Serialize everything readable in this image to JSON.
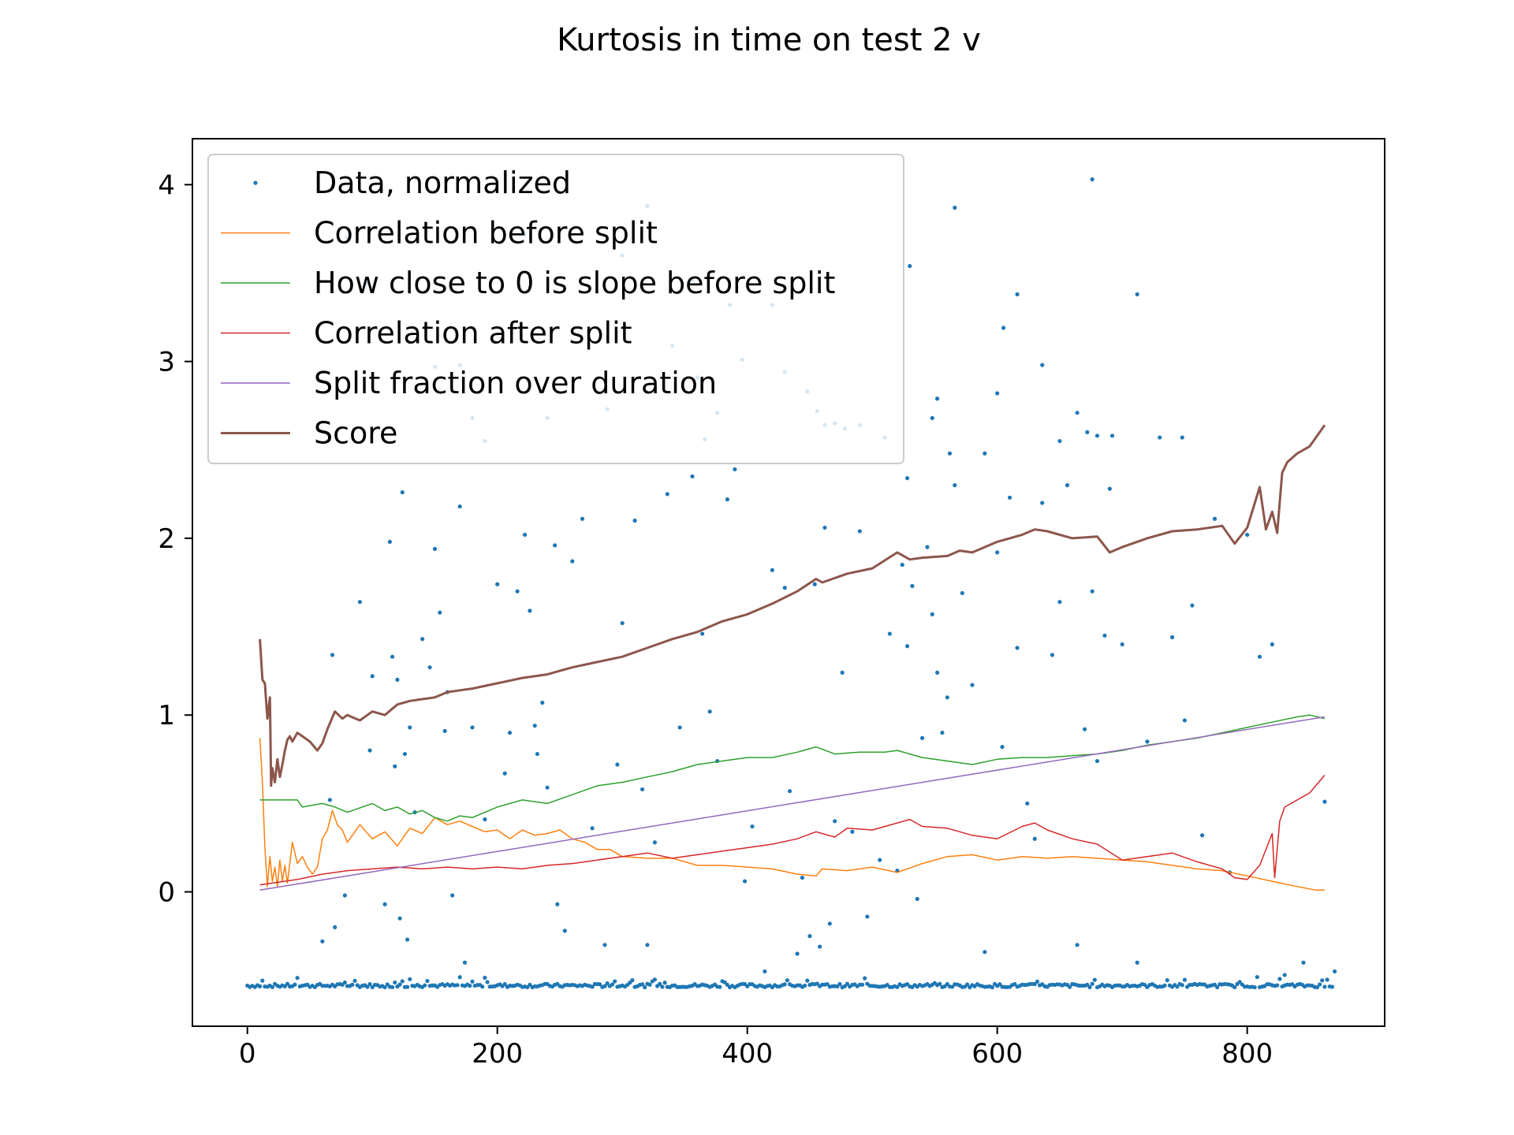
{
  "chart_data": {
    "type": "line",
    "title": "Kurtosis in time on test 2 v",
    "xlabel": "",
    "ylabel": "",
    "xlim": [
      -44,
      910
    ],
    "ylim": [
      -0.76,
      4.26
    ],
    "xticks": [
      0,
      200,
      400,
      600,
      800
    ],
    "yticks": [
      0,
      1,
      2,
      3,
      4
    ],
    "legend_position": "top-left",
    "grid": false,
    "series": [
      {
        "name": "Data, normalized",
        "kind": "scatter",
        "color": "#1f77b4",
        "baseline": -0.53,
        "x": [
          60,
          66,
          68,
          70,
          78,
          90,
          98,
          100,
          110,
          114,
          116,
          118,
          120,
          122,
          124,
          126,
          128,
          130,
          134,
          140,
          146,
          150,
          154,
          158,
          160,
          164,
          170,
          174,
          180,
          190,
          200,
          206,
          210,
          216,
          222,
          226,
          230,
          232,
          236,
          240,
          246,
          248,
          254,
          260,
          268,
          276,
          286,
          296,
          300,
          310,
          316,
          320,
          326,
          336,
          346,
          356,
          364,
          370,
          376,
          384,
          390,
          398,
          404,
          414,
          420,
          430,
          434,
          440,
          444,
          450,
          454,
          458,
          462,
          466,
          470,
          476,
          484,
          490,
          496,
          506,
          514,
          520,
          524,
          528,
          532,
          536,
          540,
          544,
          548,
          552,
          556,
          560,
          566,
          572,
          580,
          590,
          600,
          604,
          610,
          616,
          624,
          630,
          636,
          644,
          650,
          656,
          664,
          670,
          676,
          680,
          686,
          692,
          700,
          712,
          720,
          730,
          740,
          750,
          756,
          764,
          774,
          786,
          800,
          810,
          820,
          830,
          845,
          862,
          870
        ],
        "y": [
          -0.28,
          0.52,
          1.34,
          -0.2,
          -0.02,
          1.64,
          0.8,
          1.22,
          -0.07,
          1.98,
          1.33,
          0.71,
          1.2,
          -0.15,
          2.26,
          0.78,
          -0.27,
          0.93,
          0.45,
          1.43,
          1.27,
          1.94,
          1.58,
          0.91,
          1.13,
          -0.02,
          2.18,
          -0.4,
          0.93,
          0.41,
          1.74,
          0.67,
          0.9,
          1.7,
          2.02,
          1.59,
          0.94,
          0.78,
          1.07,
          0.59,
          1.96,
          -0.07,
          -0.22,
          1.87,
          2.11,
          0.36,
          -0.3,
          0.72,
          1.52,
          2.1,
          0.58,
          -0.3,
          0.28,
          2.25,
          0.93,
          2.35,
          1.46,
          1.02,
          0.74,
          2.22,
          2.39,
          0.06,
          0.37,
          -0.45,
          1.82,
          1.72,
          0.57,
          -0.35,
          0.08,
          -0.25,
          1.74,
          -0.31,
          2.06,
          -0.18,
          0.4,
          1.24,
          0.34,
          2.04,
          -0.14,
          0.18,
          1.46,
          0.12,
          1.85,
          1.39,
          1.73,
          -0.04,
          0.87,
          1.95,
          1.57,
          1.24,
          0.9,
          1.1,
          2.3,
          1.69,
          1.17,
          -0.34,
          1.92,
          0.82,
          2.23,
          1.38,
          0.5,
          0.3,
          2.2,
          1.34,
          1.64,
          2.3,
          -0.3,
          0.92,
          1.7,
          0.74,
          1.45,
          2.58,
          1.4,
          -0.4,
          0.85,
          2.57,
          1.44,
          0.97,
          1.62,
          0.32,
          2.11,
          0.11,
          2.02,
          1.33,
          1.4,
          -0.47,
          -0.4,
          0.51,
          -0.45
        ],
        "x_upper": [
          80,
          96,
          150,
          170,
          180,
          190,
          222,
          240,
          262,
          288,
          300,
          320,
          340,
          356,
          360,
          366,
          376,
          386,
          396,
          420,
          430,
          448,
          456,
          462,
          470,
          478,
          490,
          510,
          528,
          530,
          548,
          552,
          562,
          566,
          590,
          600,
          605,
          616,
          636,
          650,
          664,
          672,
          676,
          680,
          690,
          712,
          748
        ],
        "y_upper": [
          3.7,
          3.44,
          2.97,
          2.98,
          2.68,
          2.55,
          3.72,
          2.68,
          3.76,
          2.73,
          3.6,
          3.88,
          3.09,
          3.46,
          2.91,
          2.56,
          2.71,
          3.32,
          3.01,
          3.32,
          2.94,
          2.83,
          2.72,
          2.64,
          2.65,
          2.62,
          2.64,
          2.57,
          2.34,
          3.54,
          2.68,
          2.79,
          2.48,
          3.87,
          2.48,
          2.82,
          3.19,
          3.38,
          2.98,
          2.55,
          2.71,
          2.6,
          4.03,
          2.58,
          2.28,
          3.38,
          2.57
        ]
      },
      {
        "name": "Correlation before split",
        "kind": "line",
        "color": "#ff7f0e",
        "x": [
          10,
          12,
          14,
          16,
          18,
          20,
          22,
          24,
          26,
          28,
          30,
          32,
          36,
          40,
          44,
          48,
          52,
          56,
          60,
          64,
          68,
          72,
          76,
          80,
          90,
          100,
          110,
          120,
          130,
          140,
          150,
          160,
          170,
          180,
          190,
          200,
          210,
          220,
          230,
          240,
          250,
          260,
          270,
          280,
          290,
          300,
          320,
          340,
          360,
          380,
          400,
          420,
          440,
          455,
          460,
          480,
          500,
          520,
          540,
          560,
          580,
          600,
          620,
          640,
          660,
          680,
          700,
          720,
          740,
          760,
          780,
          800,
          820,
          840,
          855,
          862
        ],
        "y": [
          0.87,
          0.62,
          0.25,
          0.03,
          0.2,
          0.06,
          0.14,
          0.03,
          0.18,
          0.06,
          0.15,
          0.05,
          0.28,
          0.16,
          0.2,
          0.14,
          0.1,
          0.14,
          0.3,
          0.35,
          0.46,
          0.38,
          0.35,
          0.28,
          0.38,
          0.3,
          0.34,
          0.26,
          0.36,
          0.33,
          0.42,
          0.38,
          0.4,
          0.37,
          0.34,
          0.35,
          0.3,
          0.35,
          0.32,
          0.33,
          0.35,
          0.3,
          0.28,
          0.24,
          0.24,
          0.2,
          0.19,
          0.19,
          0.15,
          0.15,
          0.14,
          0.13,
          0.1,
          0.09,
          0.13,
          0.12,
          0.14,
          0.11,
          0.16,
          0.2,
          0.21,
          0.18,
          0.2,
          0.19,
          0.2,
          0.19,
          0.18,
          0.17,
          0.15,
          0.13,
          0.12,
          0.09,
          0.06,
          0.03,
          0.01,
          0.01
        ]
      },
      {
        "name": "How close to 0 is slope before split",
        "kind": "line",
        "color": "#2ca02c",
        "x": [
          10,
          40,
          44,
          60,
          70,
          80,
          100,
          110,
          120,
          130,
          140,
          150,
          160,
          170,
          180,
          200,
          220,
          240,
          260,
          280,
          300,
          320,
          340,
          360,
          380,
          400,
          420,
          440,
          455,
          470,
          490,
          510,
          520,
          540,
          560,
          580,
          600,
          620,
          640,
          660,
          680,
          700,
          720,
          740,
          760,
          780,
          800,
          820,
          840,
          850,
          862
        ],
        "y": [
          0.52,
          0.52,
          0.48,
          0.5,
          0.48,
          0.45,
          0.5,
          0.46,
          0.48,
          0.44,
          0.46,
          0.42,
          0.4,
          0.43,
          0.42,
          0.48,
          0.52,
          0.5,
          0.55,
          0.6,
          0.62,
          0.65,
          0.68,
          0.72,
          0.74,
          0.76,
          0.76,
          0.79,
          0.82,
          0.78,
          0.79,
          0.79,
          0.8,
          0.76,
          0.74,
          0.72,
          0.75,
          0.76,
          0.76,
          0.77,
          0.78,
          0.8,
          0.83,
          0.85,
          0.87,
          0.9,
          0.93,
          0.96,
          0.99,
          1.0,
          0.98
        ]
      },
      {
        "name": "Correlation after split",
        "kind": "line",
        "color": "#d62728",
        "x": [
          10,
          40,
          60,
          80,
          100,
          120,
          140,
          160,
          180,
          200,
          220,
          240,
          260,
          280,
          300,
          320,
          340,
          360,
          380,
          400,
          420,
          440,
          455,
          470,
          480,
          500,
          520,
          530,
          540,
          560,
          580,
          600,
          620,
          630,
          640,
          660,
          680,
          700,
          720,
          740,
          760,
          780,
          790,
          800,
          810,
          820,
          822,
          826,
          830,
          840,
          850,
          862
        ],
        "y": [
          0.04,
          0.07,
          0.1,
          0.12,
          0.13,
          0.14,
          0.13,
          0.14,
          0.13,
          0.14,
          0.13,
          0.15,
          0.16,
          0.18,
          0.2,
          0.22,
          0.19,
          0.21,
          0.23,
          0.25,
          0.27,
          0.3,
          0.34,
          0.31,
          0.36,
          0.35,
          0.39,
          0.41,
          0.37,
          0.36,
          0.32,
          0.3,
          0.37,
          0.39,
          0.35,
          0.3,
          0.27,
          0.18,
          0.2,
          0.22,
          0.17,
          0.13,
          0.08,
          0.07,
          0.15,
          0.33,
          0.08,
          0.4,
          0.48,
          0.52,
          0.56,
          0.66
        ]
      },
      {
        "name": "Split fraction over duration",
        "kind": "line",
        "color": "#9467bd",
        "x": [
          10,
          862
        ],
        "y": [
          0.01,
          0.99
        ]
      },
      {
        "name": "Score",
        "kind": "line",
        "color": "#8c564b",
        "x": [
          10,
          12,
          14,
          16,
          18,
          19,
          20,
          22,
          24,
          26,
          28,
          30,
          32,
          34,
          36,
          40,
          44,
          50,
          56,
          60,
          64,
          70,
          76,
          80,
          90,
          100,
          110,
          120,
          130,
          140,
          150,
          160,
          170,
          180,
          200,
          220,
          240,
          260,
          280,
          300,
          320,
          340,
          360,
          380,
          400,
          420,
          440,
          455,
          460,
          480,
          500,
          520,
          530,
          540,
          560,
          570,
          580,
          600,
          620,
          630,
          640,
          660,
          680,
          690,
          700,
          720,
          740,
          760,
          780,
          790,
          800,
          810,
          815,
          820,
          824,
          828,
          832,
          840,
          850,
          862
        ],
        "y": [
          1.43,
          1.2,
          1.18,
          0.98,
          1.1,
          0.6,
          0.7,
          0.62,
          0.75,
          0.65,
          0.72,
          0.8,
          0.86,
          0.88,
          0.85,
          0.9,
          0.88,
          0.85,
          0.8,
          0.84,
          0.92,
          1.02,
          0.98,
          1.0,
          0.97,
          1.02,
          1.0,
          1.06,
          1.08,
          1.09,
          1.1,
          1.13,
          1.14,
          1.15,
          1.18,
          1.21,
          1.23,
          1.27,
          1.3,
          1.33,
          1.38,
          1.43,
          1.47,
          1.53,
          1.57,
          1.63,
          1.7,
          1.77,
          1.75,
          1.8,
          1.83,
          1.92,
          1.88,
          1.89,
          1.9,
          1.93,
          1.92,
          1.98,
          2.02,
          2.05,
          2.04,
          2.0,
          2.01,
          1.92,
          1.95,
          2.0,
          2.04,
          2.05,
          2.07,
          1.97,
          2.06,
          2.29,
          2.05,
          2.15,
          2.03,
          2.37,
          2.43,
          2.48,
          2.52,
          2.64
        ]
      }
    ]
  }
}
